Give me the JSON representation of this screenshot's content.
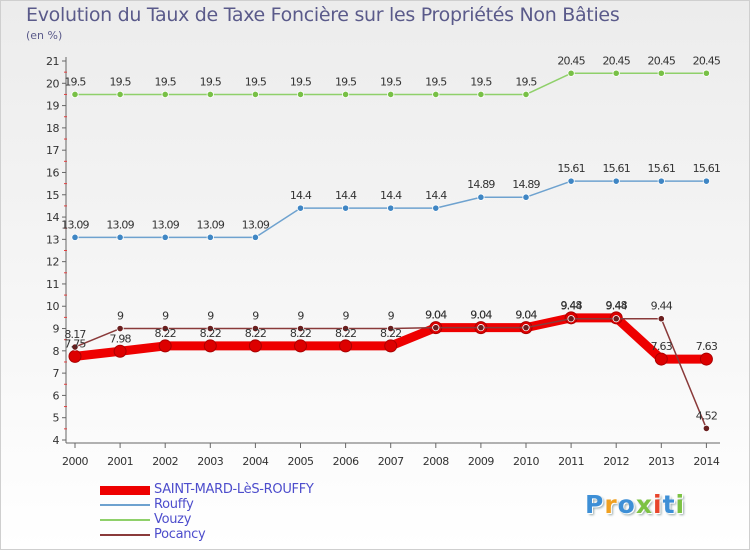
{
  "page": {
    "title": "Evolution du Taux de Taxe Foncière sur les Propriétés Non Bâties",
    "subtitle": "(en %)",
    "logo": [
      "P",
      "r",
      "o",
      "x",
      "i",
      "t",
      "i"
    ]
  },
  "chart_data": {
    "type": "line",
    "title": "Evolution du Taux de Taxe Foncière sur les Propriétés Non Bâties",
    "ylabel": "(en %)",
    "xlabel": "",
    "ylim": [
      4,
      21
    ],
    "yticks": [
      4,
      5,
      6,
      7,
      8,
      9,
      10,
      11,
      12,
      13,
      14,
      15,
      16,
      17,
      18,
      19,
      20,
      21
    ],
    "x": [
      "2000",
      "2001",
      "2002",
      "2003",
      "2004",
      "2005",
      "2006",
      "2007",
      "2008",
      "2009",
      "2010",
      "2011",
      "2012",
      "2013",
      "2014"
    ],
    "legend_position": "bottom-left",
    "grid": false,
    "series": [
      {
        "name": "SAINT-MARD-LèS-ROUFFY",
        "color": "#ee0000",
        "width": 9,
        "values": [
          7.75,
          7.98,
          8.22,
          8.22,
          8.22,
          8.22,
          8.22,
          8.22,
          9.04,
          9.04,
          9.04,
          9.48,
          9.48,
          7.63,
          7.63
        ],
        "labels": [
          "7.75",
          "7.98",
          "8.22",
          "8.22",
          "8.22",
          "8.22",
          "8.22",
          "8.22",
          "9.04",
          "9.04",
          "9.04",
          "9.48",
          "9.48",
          "7.63",
          "7.63"
        ]
      },
      {
        "name": "Rouffy",
        "color": "#6ea2cf",
        "width": 1.5,
        "marker": "#3f86c4",
        "values": [
          13.09,
          13.09,
          13.09,
          13.09,
          13.09,
          14.4,
          14.4,
          14.4,
          14.4,
          14.89,
          14.89,
          15.61,
          15.61,
          15.61,
          15.61
        ],
        "labels": [
          "13.09",
          "13.09",
          "13.09",
          "13.09",
          "13.09",
          "14.4",
          "14.4",
          "14.4",
          "14.4",
          "14.89",
          "14.89",
          "15.61",
          "15.61",
          "15.61",
          "15.61"
        ]
      },
      {
        "name": "Vouzy",
        "color": "#8fd06a",
        "width": 1.5,
        "marker": "#78c046",
        "values": [
          19.5,
          19.5,
          19.5,
          19.5,
          19.5,
          19.5,
          19.5,
          19.5,
          19.5,
          19.5,
          19.5,
          20.45,
          20.45,
          20.45,
          20.45
        ],
        "labels": [
          "19.5",
          "19.5",
          "19.5",
          "19.5",
          "19.5",
          "19.5",
          "19.5",
          "19.5",
          "19.5",
          "19.5",
          "19.5",
          "20.45",
          "20.45",
          "20.45",
          "20.45"
        ]
      },
      {
        "name": "Pocancy",
        "color": "#8a3a3a",
        "width": 1.5,
        "marker": "#6a1f1f",
        "values": [
          8.17,
          9,
          9,
          9,
          9,
          9,
          9,
          9,
          9.04,
          9.04,
          9.04,
          9.44,
          9.44,
          9.44,
          4.52
        ],
        "labels": [
          "8.17",
          "9",
          "9",
          "9",
          "9",
          "9",
          "9",
          "9",
          "9.04",
          "9.04",
          "9.04",
          "9.44",
          "9.44",
          "9.44",
          "4.52"
        ]
      }
    ],
    "legend": [
      "SAINT-MARD-LèS-ROUFFY",
      "Rouffy",
      "Vouzy",
      "Pocancy"
    ]
  }
}
